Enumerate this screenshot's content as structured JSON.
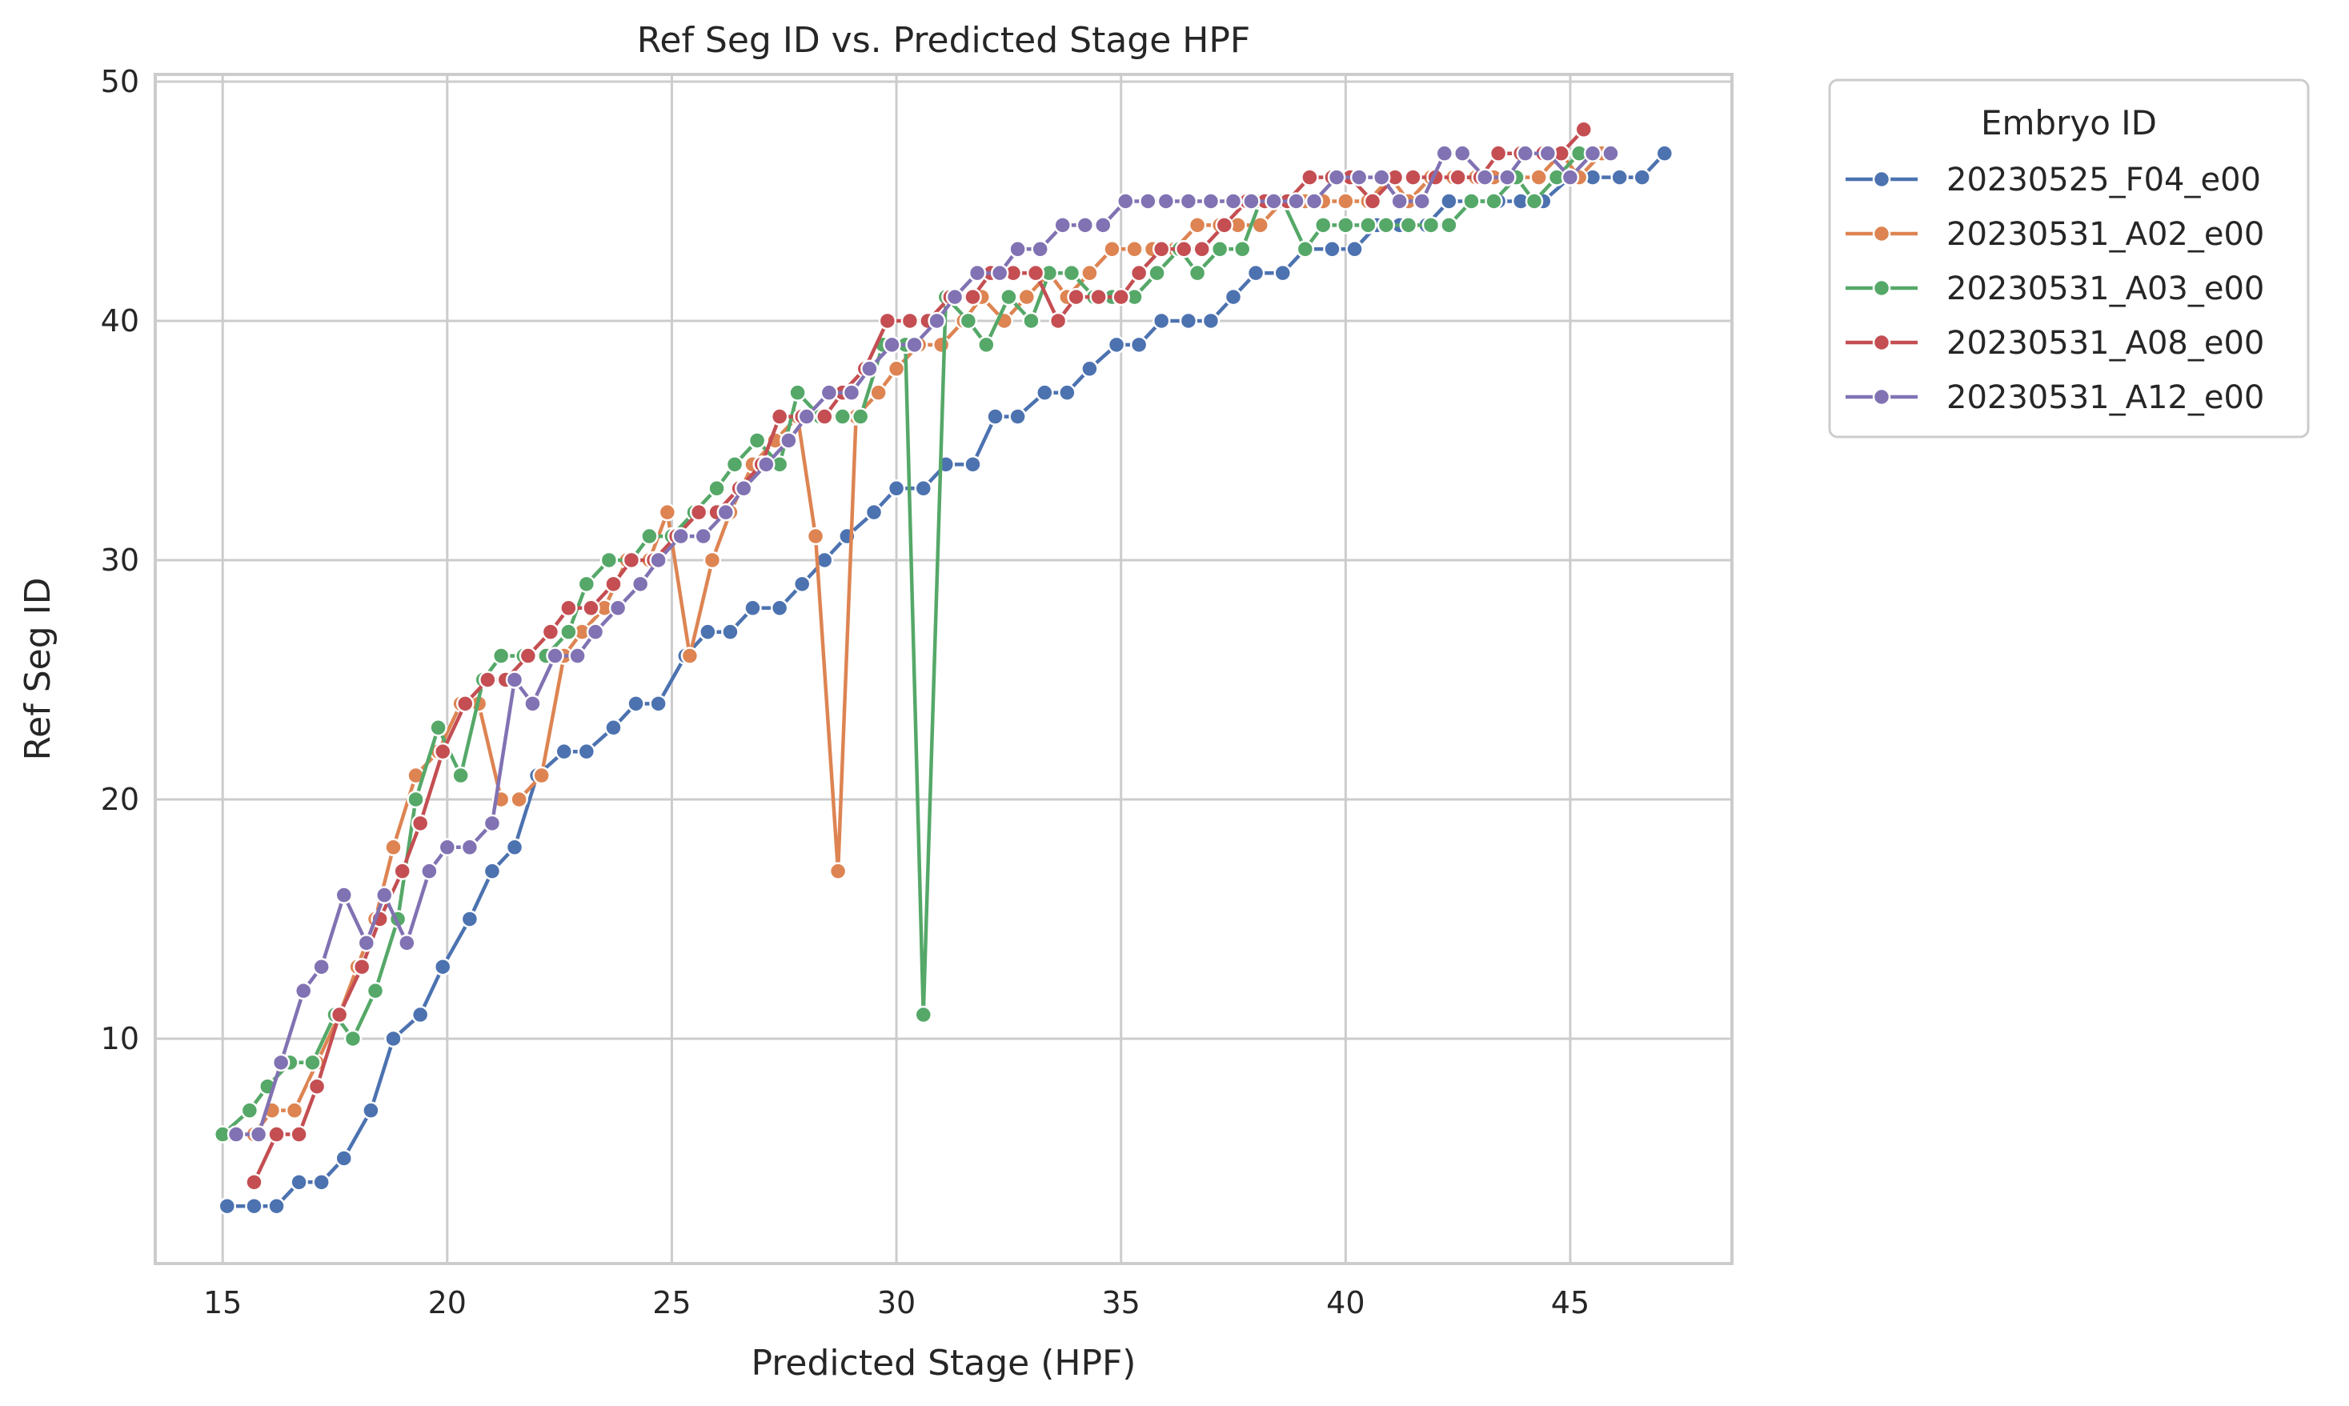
{
  "chart_data": {
    "type": "line",
    "title": "Ref Seg ID vs. Predicted Stage HPF",
    "xlabel": "Predicted Stage (HPF)",
    "ylabel": "Ref Seg ID",
    "xlim": [
      13.5,
      48.6
    ],
    "ylim": [
      0.6,
      50.3
    ],
    "xticks": [
      15,
      20,
      25,
      30,
      35,
      40,
      45
    ],
    "yticks": [
      10,
      20,
      30,
      40,
      50
    ],
    "grid": true,
    "legend": {
      "title": "Embryo ID",
      "placement": "outside-right-top"
    },
    "series": [
      {
        "name": "20230525_F04_e00",
        "color": "#4c72b0",
        "points": [
          [
            15.1,
            3
          ],
          [
            15.7,
            3
          ],
          [
            16.2,
            3
          ],
          [
            16.7,
            4
          ],
          [
            17.2,
            4
          ],
          [
            17.7,
            5
          ],
          [
            18.3,
            7
          ],
          [
            18.8,
            10
          ],
          [
            19.4,
            11
          ],
          [
            19.9,
            13
          ],
          [
            20.5,
            15
          ],
          [
            21.0,
            17
          ],
          [
            21.5,
            18
          ],
          [
            22.0,
            21
          ],
          [
            22.6,
            22
          ],
          [
            23.1,
            22
          ],
          [
            23.7,
            23
          ],
          [
            24.2,
            24
          ],
          [
            24.7,
            24
          ],
          [
            25.3,
            26
          ],
          [
            25.8,
            27
          ],
          [
            26.3,
            27
          ],
          [
            26.8,
            28
          ],
          [
            27.4,
            28
          ],
          [
            27.9,
            29
          ],
          [
            28.4,
            30
          ],
          [
            28.9,
            31
          ],
          [
            29.5,
            32
          ],
          [
            30.0,
            33
          ],
          [
            30.6,
            33
          ],
          [
            31.1,
            34
          ],
          [
            31.7,
            34
          ],
          [
            32.2,
            36
          ],
          [
            32.7,
            36
          ],
          [
            33.3,
            37
          ],
          [
            33.8,
            37
          ],
          [
            34.3,
            38
          ],
          [
            34.9,
            39
          ],
          [
            35.4,
            39
          ],
          [
            35.9,
            40
          ],
          [
            36.5,
            40
          ],
          [
            37.0,
            40
          ],
          [
            37.5,
            41
          ],
          [
            38.0,
            42
          ],
          [
            38.6,
            42
          ],
          [
            39.1,
            43
          ],
          [
            39.7,
            43
          ],
          [
            40.2,
            43
          ],
          [
            40.7,
            44
          ],
          [
            41.2,
            44
          ],
          [
            41.8,
            44
          ],
          [
            42.3,
            45
          ],
          [
            42.8,
            45
          ],
          [
            43.4,
            45
          ],
          [
            43.9,
            45
          ],
          [
            44.4,
            45
          ],
          [
            45.0,
            46
          ],
          [
            45.5,
            46
          ],
          [
            46.1,
            46
          ],
          [
            46.6,
            46
          ],
          [
            47.1,
            47
          ]
        ]
      },
      {
        "name": "20230531_A02_e00",
        "color": "#dd8452",
        "points": [
          [
            15.2,
            6
          ],
          [
            15.7,
            6
          ],
          [
            16.1,
            7
          ],
          [
            16.6,
            7
          ],
          [
            17.1,
            9
          ],
          [
            17.6,
            11
          ],
          [
            18.0,
            13
          ],
          [
            18.4,
            15
          ],
          [
            18.8,
            18
          ],
          [
            19.3,
            21
          ],
          [
            19.8,
            22
          ],
          [
            20.3,
            24
          ],
          [
            20.7,
            24
          ],
          [
            21.2,
            20
          ],
          [
            21.6,
            20
          ],
          [
            22.1,
            21
          ],
          [
            22.6,
            26
          ],
          [
            23.0,
            27
          ],
          [
            23.5,
            28
          ],
          [
            24.0,
            30
          ],
          [
            24.5,
            30
          ],
          [
            24.9,
            32
          ],
          [
            25.4,
            26
          ],
          [
            25.9,
            30
          ],
          [
            26.3,
            32
          ],
          [
            26.8,
            34
          ],
          [
            27.3,
            35
          ],
          [
            27.8,
            36
          ],
          [
            28.2,
            31
          ],
          [
            28.7,
            17
          ],
          [
            29.1,
            36
          ],
          [
            29.6,
            37
          ],
          [
            30.0,
            38
          ],
          [
            30.5,
            39
          ],
          [
            31.0,
            39
          ],
          [
            31.5,
            40
          ],
          [
            31.9,
            41
          ],
          [
            32.4,
            40
          ],
          [
            32.9,
            41
          ],
          [
            33.4,
            42
          ],
          [
            33.8,
            41
          ],
          [
            34.3,
            42
          ],
          [
            34.8,
            43
          ],
          [
            35.3,
            43
          ],
          [
            35.7,
            43
          ],
          [
            36.2,
            43
          ],
          [
            36.7,
            44
          ],
          [
            37.2,
            44
          ],
          [
            37.6,
            44
          ],
          [
            38.1,
            44
          ],
          [
            38.6,
            45
          ],
          [
            39.1,
            45
          ],
          [
            39.5,
            45
          ],
          [
            40.0,
            45
          ],
          [
            40.5,
            45
          ],
          [
            41.0,
            46
          ],
          [
            41.4,
            45
          ],
          [
            41.9,
            46
          ],
          [
            42.4,
            46
          ],
          [
            42.9,
            46
          ],
          [
            43.3,
            46
          ],
          [
            43.8,
            46
          ],
          [
            44.3,
            46
          ],
          [
            44.8,
            47
          ],
          [
            45.2,
            46
          ],
          [
            45.7,
            47
          ]
        ]
      },
      {
        "name": "20230531_A03_e00",
        "color": "#55a868",
        "points": [
          [
            15.0,
            6
          ],
          [
            15.6,
            7
          ],
          [
            16.0,
            8
          ],
          [
            16.5,
            9
          ],
          [
            17.0,
            9
          ],
          [
            17.5,
            11
          ],
          [
            17.9,
            10
          ],
          [
            18.4,
            12
          ],
          [
            18.9,
            15
          ],
          [
            19.3,
            20
          ],
          [
            19.8,
            23
          ],
          [
            20.3,
            21
          ],
          [
            20.8,
            25
          ],
          [
            21.2,
            26
          ],
          [
            21.7,
            26
          ],
          [
            22.2,
            26
          ],
          [
            22.7,
            27
          ],
          [
            23.1,
            29
          ],
          [
            23.6,
            30
          ],
          [
            24.1,
            30
          ],
          [
            24.5,
            31
          ],
          [
            25.0,
            31
          ],
          [
            25.5,
            32
          ],
          [
            26.0,
            33
          ],
          [
            26.4,
            34
          ],
          [
            26.9,
            35
          ],
          [
            27.4,
            34
          ],
          [
            27.8,
            37
          ],
          [
            28.3,
            36
          ],
          [
            28.8,
            36
          ],
          [
            29.2,
            36
          ],
          [
            29.7,
            39
          ],
          [
            30.2,
            39
          ],
          [
            30.6,
            11
          ],
          [
            31.1,
            41
          ],
          [
            31.6,
            40
          ],
          [
            32.0,
            39
          ],
          [
            32.5,
            41
          ],
          [
            33.0,
            40
          ],
          [
            33.4,
            42
          ],
          [
            33.9,
            42
          ],
          [
            34.4,
            41
          ],
          [
            34.8,
            41
          ],
          [
            35.3,
            41
          ],
          [
            35.8,
            42
          ],
          [
            36.3,
            43
          ],
          [
            36.7,
            42
          ],
          [
            37.2,
            43
          ],
          [
            37.7,
            43
          ],
          [
            38.1,
            45
          ],
          [
            38.6,
            45
          ],
          [
            39.1,
            43
          ],
          [
            39.5,
            44
          ],
          [
            40.0,
            44
          ],
          [
            40.5,
            44
          ],
          [
            40.9,
            44
          ],
          [
            41.4,
            44
          ],
          [
            41.9,
            44
          ],
          [
            42.3,
            44
          ],
          [
            42.8,
            45
          ],
          [
            43.3,
            45
          ],
          [
            43.8,
            46
          ],
          [
            44.2,
            45
          ],
          [
            44.7,
            46
          ],
          [
            45.2,
            47
          ]
        ]
      },
      {
        "name": "20230531_A08_e00",
        "color": "#c44e52",
        "points": [
          [
            15.7,
            4
          ],
          [
            16.2,
            6
          ],
          [
            16.7,
            6
          ],
          [
            17.1,
            8
          ],
          [
            17.6,
            11
          ],
          [
            18.1,
            13
          ],
          [
            18.5,
            15
          ],
          [
            19.0,
            17
          ],
          [
            19.4,
            19
          ],
          [
            19.9,
            22
          ],
          [
            20.4,
            24
          ],
          [
            20.9,
            25
          ],
          [
            21.3,
            25
          ],
          [
            21.8,
            26
          ],
          [
            22.3,
            27
          ],
          [
            22.7,
            28
          ],
          [
            23.2,
            28
          ],
          [
            23.7,
            29
          ],
          [
            24.1,
            30
          ],
          [
            24.6,
            30
          ],
          [
            25.1,
            31
          ],
          [
            25.6,
            32
          ],
          [
            26.0,
            32
          ],
          [
            26.5,
            33
          ],
          [
            27.0,
            34
          ],
          [
            27.4,
            36
          ],
          [
            27.9,
            36
          ],
          [
            28.4,
            36
          ],
          [
            28.8,
            37
          ],
          [
            29.3,
            38
          ],
          [
            29.8,
            40
          ],
          [
            30.3,
            40
          ],
          [
            30.7,
            40
          ],
          [
            31.2,
            41
          ],
          [
            31.7,
            41
          ],
          [
            32.1,
            42
          ],
          [
            32.6,
            42
          ],
          [
            33.1,
            42
          ],
          [
            33.6,
            40
          ],
          [
            34.0,
            41
          ],
          [
            34.5,
            41
          ],
          [
            35.0,
            41
          ],
          [
            35.4,
            42
          ],
          [
            35.9,
            43
          ],
          [
            36.4,
            43
          ],
          [
            36.8,
            43
          ],
          [
            37.3,
            44
          ],
          [
            37.8,
            45
          ],
          [
            38.2,
            45
          ],
          [
            38.7,
            45
          ],
          [
            39.2,
            46
          ],
          [
            39.7,
            46
          ],
          [
            40.1,
            46
          ],
          [
            40.6,
            45
          ],
          [
            41.1,
            46
          ],
          [
            41.5,
            46
          ],
          [
            42.0,
            46
          ],
          [
            42.5,
            46
          ],
          [
            43.0,
            46
          ],
          [
            43.4,
            47
          ],
          [
            43.9,
            47
          ],
          [
            44.4,
            47
          ],
          [
            44.8,
            47
          ],
          [
            45.3,
            48
          ]
        ]
      },
      {
        "name": "20230531_A12_e00",
        "color": "#8172b3",
        "points": [
          [
            15.3,
            6
          ],
          [
            15.8,
            6
          ],
          [
            16.3,
            9
          ],
          [
            16.8,
            12
          ],
          [
            17.2,
            13
          ],
          [
            17.7,
            16
          ],
          [
            18.2,
            14
          ],
          [
            18.6,
            16
          ],
          [
            19.1,
            14
          ],
          [
            19.6,
            17
          ],
          [
            20.0,
            18
          ],
          [
            20.5,
            18
          ],
          [
            21.0,
            19
          ],
          [
            21.5,
            25
          ],
          [
            21.9,
            24
          ],
          [
            22.4,
            26
          ],
          [
            22.9,
            26
          ],
          [
            23.3,
            27
          ],
          [
            23.8,
            28
          ],
          [
            24.3,
            29
          ],
          [
            24.7,
            30
          ],
          [
            25.2,
            31
          ],
          [
            25.7,
            31
          ],
          [
            26.2,
            32
          ],
          [
            26.6,
            33
          ],
          [
            27.1,
            34
          ],
          [
            27.6,
            35
          ],
          [
            28.0,
            36
          ],
          [
            28.5,
            37
          ],
          [
            29.0,
            37
          ],
          [
            29.4,
            38
          ],
          [
            29.9,
            39
          ],
          [
            30.4,
            39
          ],
          [
            30.9,
            40
          ],
          [
            31.3,
            41
          ],
          [
            31.8,
            42
          ],
          [
            32.3,
            42
          ],
          [
            32.7,
            43
          ],
          [
            33.2,
            43
          ],
          [
            33.7,
            44
          ],
          [
            34.2,
            44
          ],
          [
            34.6,
            44
          ],
          [
            35.1,
            45
          ],
          [
            35.6,
            45
          ],
          [
            36.0,
            45
          ],
          [
            36.5,
            45
          ],
          [
            37.0,
            45
          ],
          [
            37.5,
            45
          ],
          [
            37.9,
            45
          ],
          [
            38.4,
            45
          ],
          [
            38.9,
            45
          ],
          [
            39.3,
            45
          ],
          [
            39.8,
            46
          ],
          [
            40.3,
            46
          ],
          [
            40.8,
            46
          ],
          [
            41.2,
            45
          ],
          [
            41.7,
            45
          ],
          [
            42.2,
            47
          ],
          [
            42.6,
            47
          ],
          [
            43.1,
            46
          ],
          [
            43.6,
            46
          ],
          [
            44.0,
            47
          ],
          [
            44.5,
            47
          ],
          [
            45.0,
            46
          ],
          [
            45.5,
            47
          ],
          [
            45.9,
            47
          ]
        ]
      }
    ]
  }
}
